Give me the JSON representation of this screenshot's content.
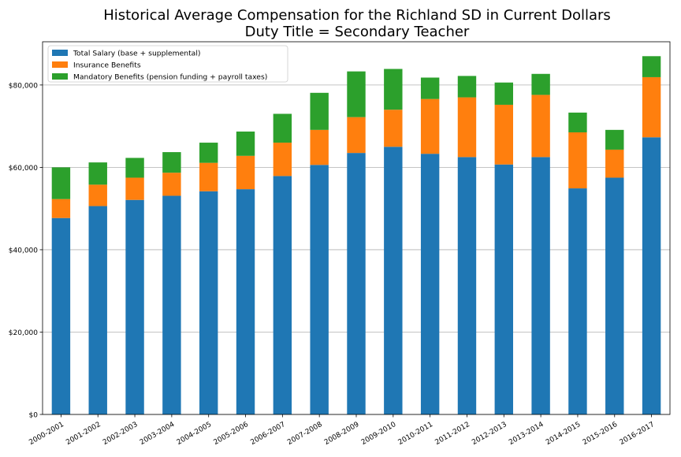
{
  "chart_data": {
    "type": "bar",
    "stacked": true,
    "title": "Historical Average Compensation for the Richland SD in Current Dollars",
    "subtitle": "Duty Title = Secondary Teacher",
    "xlabel": "",
    "ylabel": "",
    "ylim": [
      0,
      90500
    ],
    "yticks": [
      0,
      20000,
      40000,
      60000,
      80000
    ],
    "ytick_labels": [
      "$0",
      "$20,000",
      "$40,000",
      "$60,000",
      "$80,000"
    ],
    "grid": "horizontal",
    "legend_position": "top-left",
    "categories": [
      "2000-2001",
      "2001-2002",
      "2002-2003",
      "2003-2004",
      "2004-2005",
      "2005-2006",
      "2006-2007",
      "2007-2008",
      "2008-2009",
      "2009-2010",
      "2010-2011",
      "2011-2012",
      "2012-2013",
      "2013-2014",
      "2014-2015",
      "2015-2016",
      "2016-2017"
    ],
    "series": [
      {
        "name": "Total Salary (base + supplemental)",
        "color": "#1f77b4",
        "values": [
          47700,
          50600,
          52100,
          53100,
          54200,
          54700,
          57900,
          60600,
          63500,
          65000,
          63300,
          62500,
          60700,
          62500,
          54900,
          57500,
          67300
        ]
      },
      {
        "name": "Insurance Benefits",
        "color": "#ff7f0e",
        "values": [
          4600,
          5200,
          5400,
          5600,
          6900,
          8100,
          8100,
          8500,
          8700,
          9000,
          13300,
          14500,
          14500,
          15100,
          13600,
          6800,
          14600
        ]
      },
      {
        "name": "Mandatory Benefits (pension funding + payroll taxes)",
        "color": "#2ca02c",
        "values": [
          7700,
          5400,
          4800,
          5000,
          4900,
          5900,
          7000,
          9000,
          11100,
          9900,
          5200,
          5200,
          5400,
          5100,
          4800,
          4800,
          5100
        ]
      }
    ]
  }
}
